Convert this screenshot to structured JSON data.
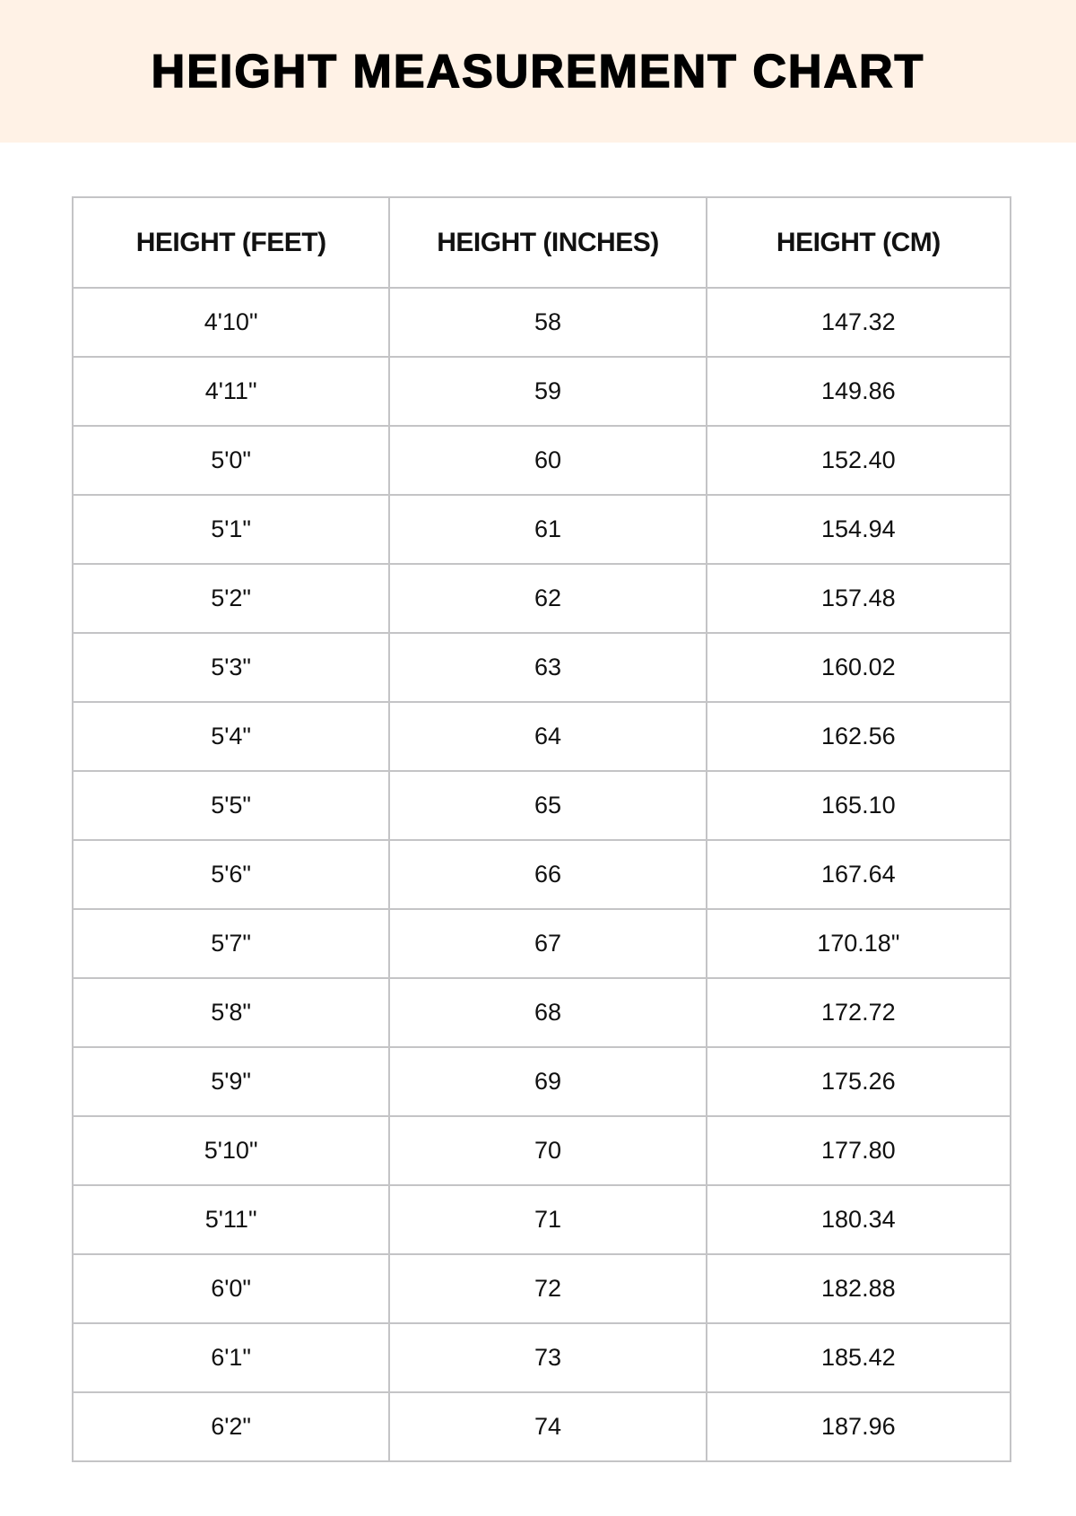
{
  "title": "HEIGHT MEASUREMENT CHART",
  "colors": {
    "banner": "#fff2e6",
    "border": "#c4c4c6",
    "text": "#111111"
  },
  "table": {
    "headers": [
      "HEIGHT (FEET)",
      "HEIGHT (INCHES)",
      "HEIGHT (CM)"
    ],
    "rows": [
      [
        "4'10\"",
        "58",
        "147.32"
      ],
      [
        "4'11\"",
        "59",
        "149.86"
      ],
      [
        "5'0\"",
        "60",
        "152.40"
      ],
      [
        "5'1\"",
        "61",
        "154.94"
      ],
      [
        "5'2\"",
        "62",
        "157.48"
      ],
      [
        "5'3\"",
        "63",
        "160.02"
      ],
      [
        "5'4\"",
        "64",
        "162.56"
      ],
      [
        "5'5\"",
        "65",
        "165.10"
      ],
      [
        "5'6\"",
        "66",
        "167.64"
      ],
      [
        "5'7\"",
        "67",
        "170.18\""
      ],
      [
        "5'8\"",
        "68",
        "172.72"
      ],
      [
        "5'9\"",
        "69",
        "175.26"
      ],
      [
        "5'10\"",
        "70",
        "177.80"
      ],
      [
        "5'11\"",
        "71",
        "180.34"
      ],
      [
        "6'0\"",
        "72",
        "182.88"
      ],
      [
        "6'1\"",
        "73",
        "185.42"
      ],
      [
        "6'2\"",
        "74",
        "187.96"
      ]
    ]
  }
}
